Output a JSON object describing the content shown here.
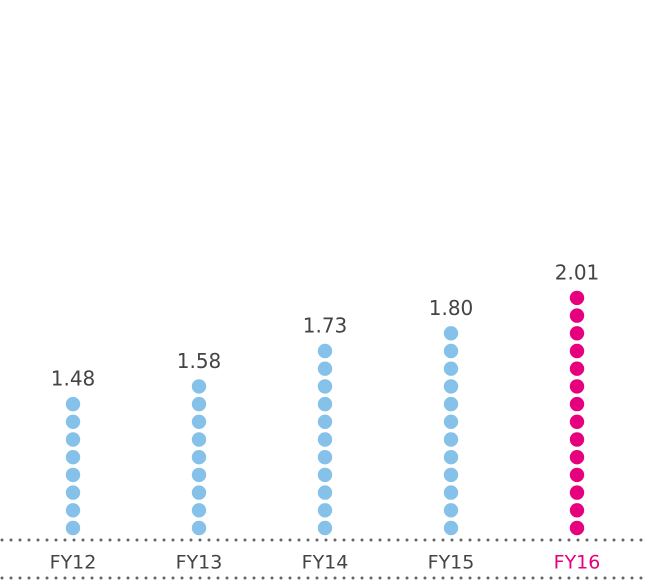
{
  "chart_data": {
    "type": "dot-column",
    "categories": [
      "FY12",
      "FY13",
      "FY14",
      "FY15",
      "FY16"
    ],
    "values": [
      1.48,
      1.58,
      1.73,
      1.8,
      2.01
    ],
    "value_labels": [
      "1.48",
      "1.58",
      "1.73",
      "1.80",
      "2.01"
    ],
    "colors": [
      "#85c1e9",
      "#85c1e9",
      "#85c1e9",
      "#85c1e9",
      "#e6007e"
    ],
    "ylim": [
      0.8,
      2.1
    ]
  }
}
